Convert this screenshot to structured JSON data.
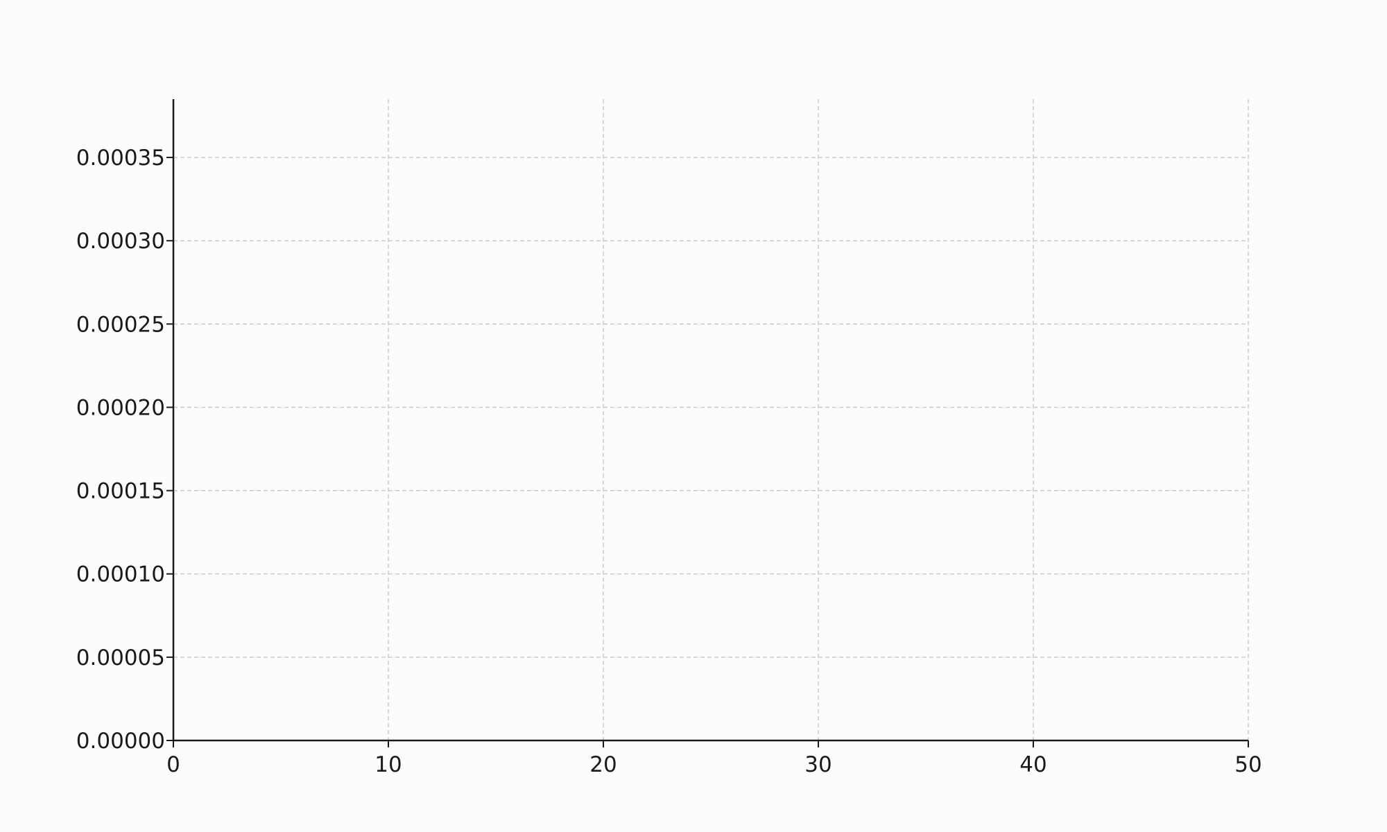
{
  "chart_data": {
    "type": "line",
    "title": "",
    "xlabel": "",
    "ylabel": "",
    "xlim": [
      0,
      50
    ],
    "ylim": [
      0,
      0.000385
    ],
    "x_ticks": [
      "0",
      "10",
      "20",
      "30",
      "40",
      "50"
    ],
    "x_tick_values": [
      0,
      10,
      20,
      30,
      40,
      50
    ],
    "y_ticks": [
      "0.00000",
      "0.00005",
      "0.00010",
      "0.00015",
      "0.00020",
      "0.00025",
      "0.00030",
      "0.00035"
    ],
    "y_tick_values": [
      0,
      5e-05,
      0.0001,
      0.00015,
      0.0002,
      0.00025,
      0.0003,
      0.00035
    ],
    "grid": true,
    "grid_style": "dashed",
    "series": [],
    "colors": {
      "background": "#fcfcfa",
      "axis": "#1a1a1a",
      "grid": "#c4c4c4",
      "text": "#1a1a1a"
    }
  }
}
